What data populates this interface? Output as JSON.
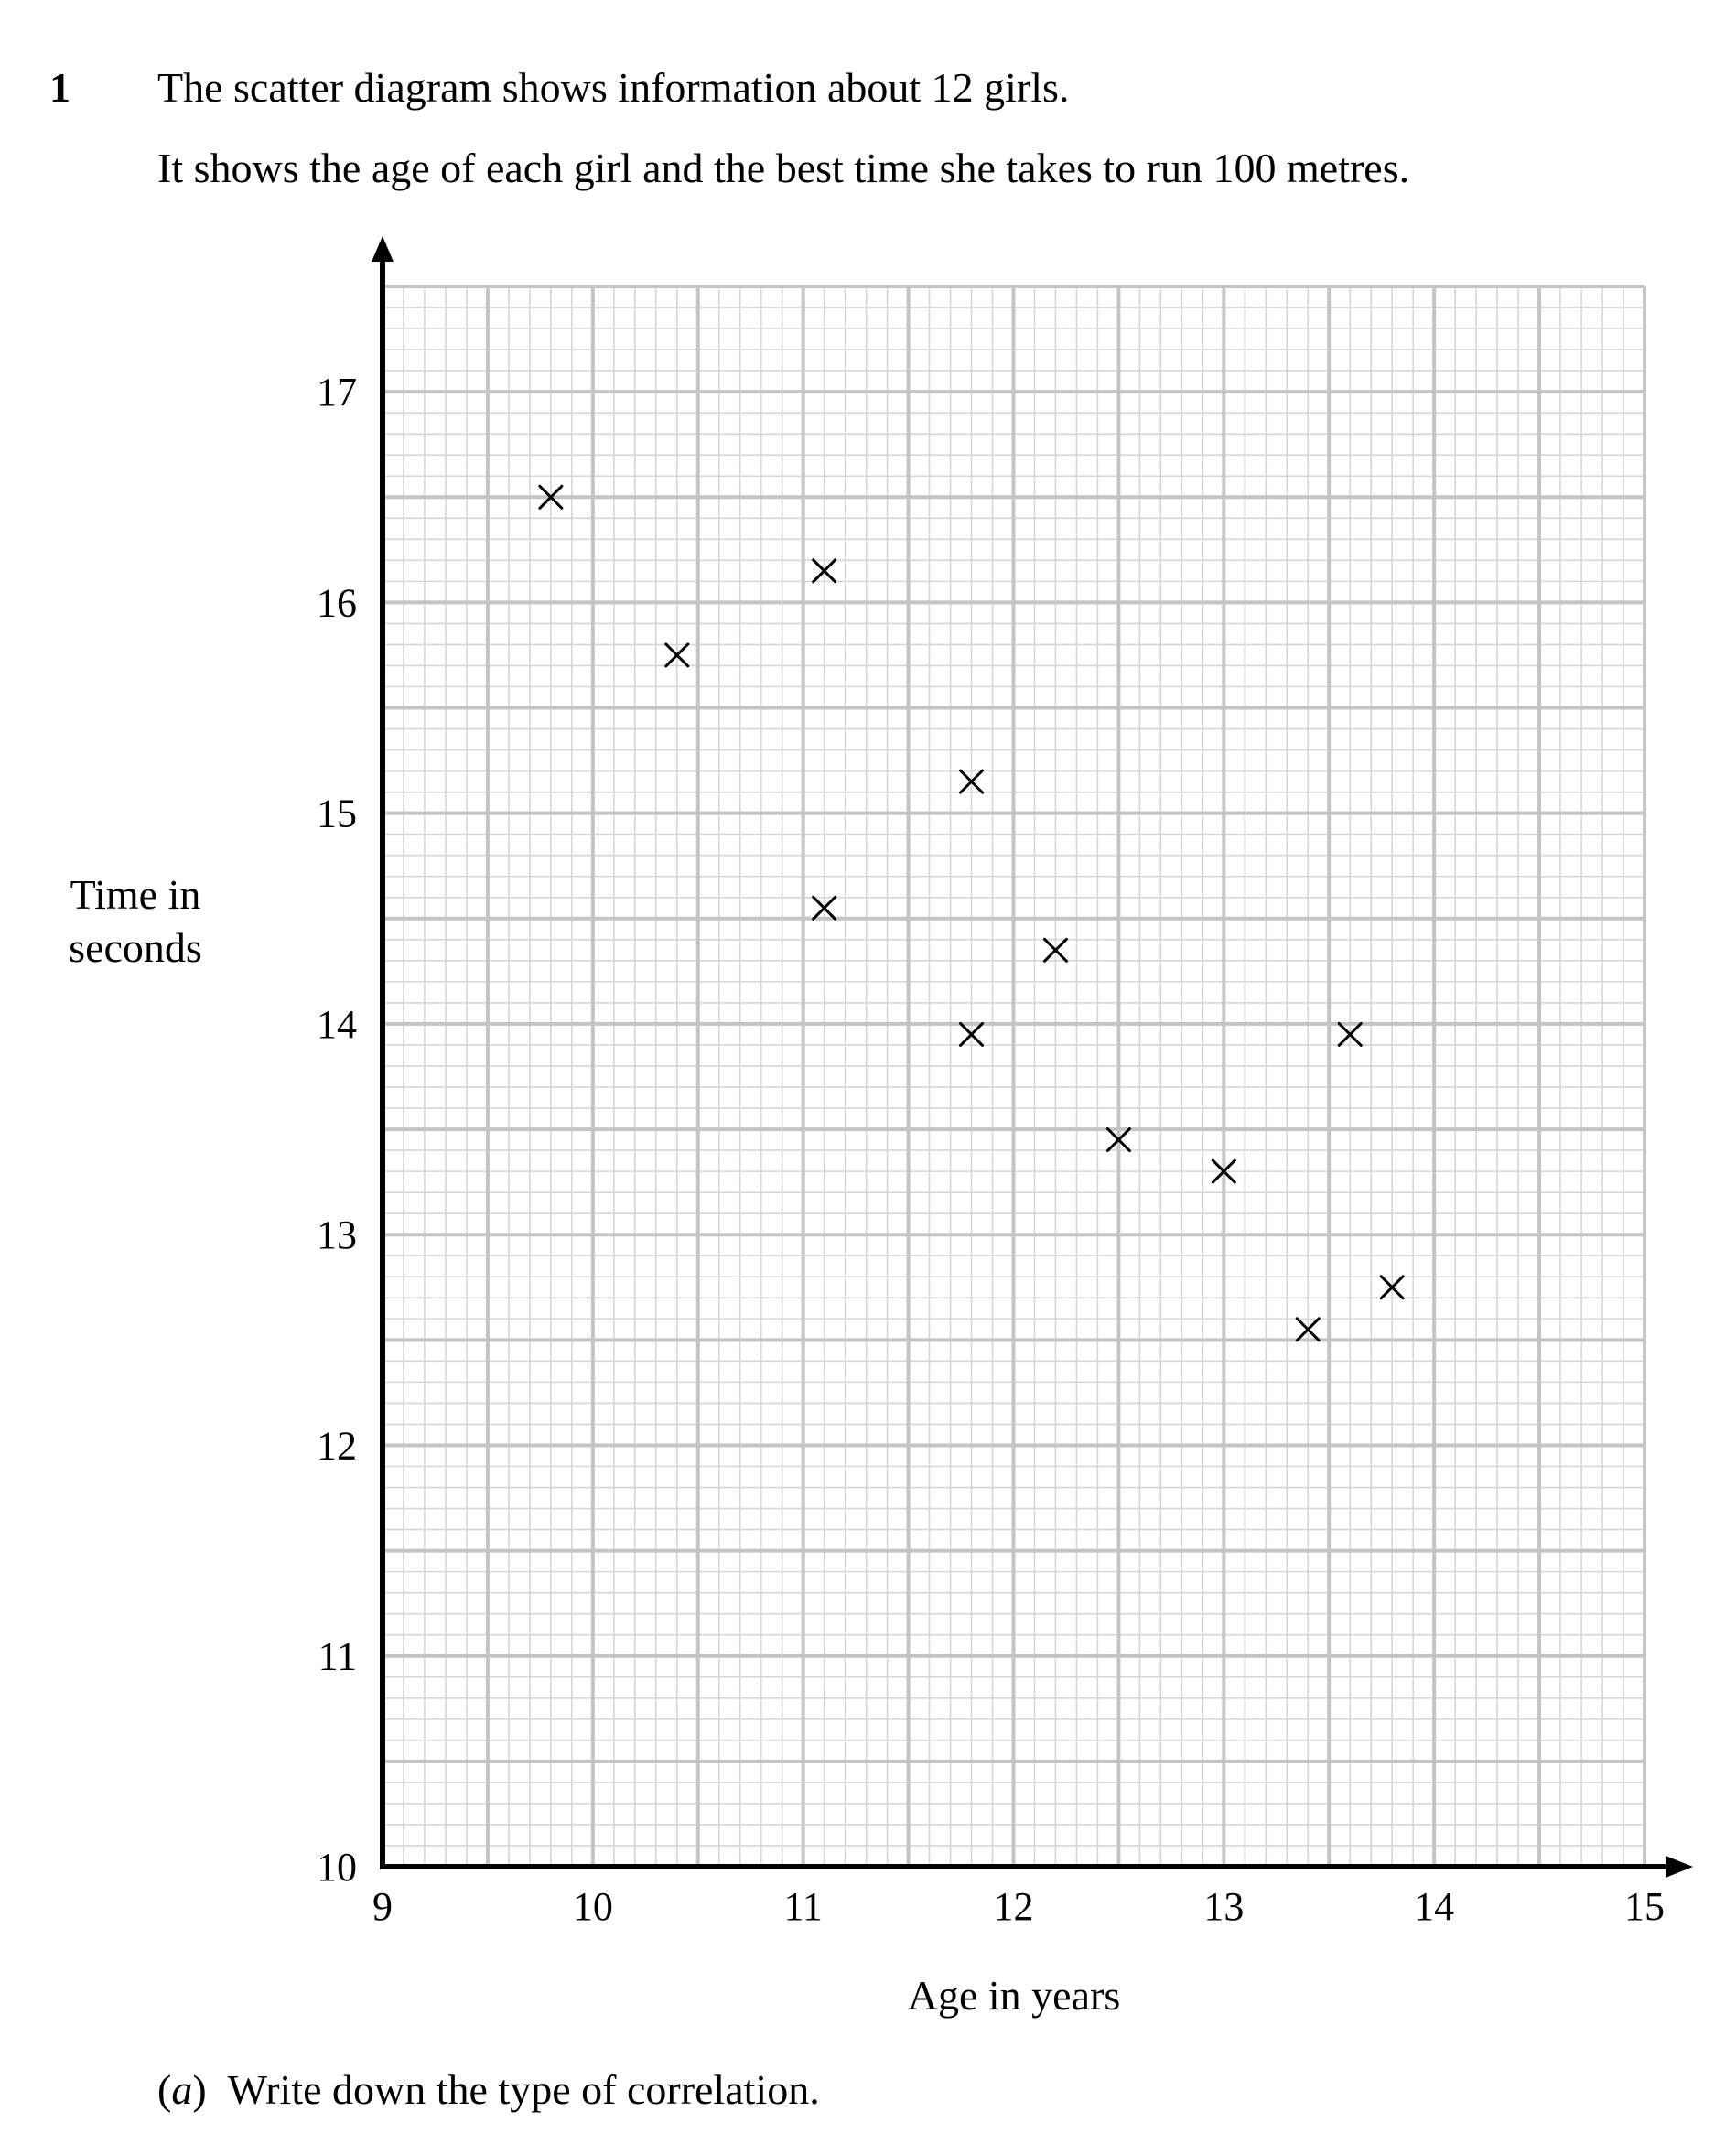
{
  "question": {
    "number": "1",
    "intro_lines": [
      "The scatter diagram shows information about 12 girls.",
      "It shows the age of each girl and the best time she takes to run 100 metres."
    ],
    "part_a": {
      "label_open": "(",
      "label_letter": "a",
      "label_close": ")",
      "text": "Write down the type of correlation."
    }
  },
  "chart_data": {
    "type": "scatter",
    "xlabel": "Age in years",
    "ylabel_lines": [
      "Time in",
      "seconds"
    ],
    "xlim": [
      9,
      15
    ],
    "ylim": [
      10,
      17.5
    ],
    "x_ticks": [
      9,
      10,
      11,
      12,
      13,
      14,
      15
    ],
    "y_ticks": [
      10,
      11,
      12,
      13,
      14,
      15,
      16,
      17
    ],
    "grid": true,
    "grid_minor_step": 0.1,
    "grid_major_step": 0.5,
    "marker": "cross",
    "points": [
      {
        "x": 9.8,
        "y": 16.5
      },
      {
        "x": 10.4,
        "y": 15.75
      },
      {
        "x": 11.1,
        "y": 16.15
      },
      {
        "x": 11.8,
        "y": 15.15
      },
      {
        "x": 11.1,
        "y": 14.55
      },
      {
        "x": 12.2,
        "y": 14.35
      },
      {
        "x": 11.8,
        "y": 13.95
      },
      {
        "x": 13.6,
        "y": 13.95
      },
      {
        "x": 12.5,
        "y": 13.45
      },
      {
        "x": 13.0,
        "y": 13.3
      },
      {
        "x": 13.8,
        "y": 12.75
      },
      {
        "x": 13.4,
        "y": 12.55
      }
    ],
    "colors": {
      "grid_minor": "#d6d6d6",
      "grid_major": "#c4c4c4",
      "axis": "#000000",
      "marker": "#000000"
    }
  }
}
